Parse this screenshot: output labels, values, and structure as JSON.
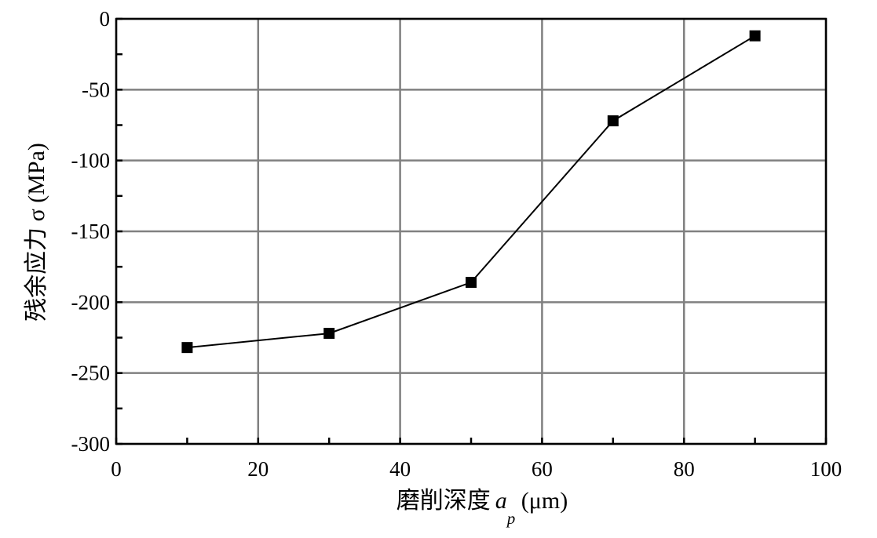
{
  "chart_data": {
    "type": "line",
    "title": "",
    "xlabel": "磨削深度",
    "xlabel_symbol": "a",
    "xlabel_subscript": "p",
    "xlabel_unit": " (μm)",
    "ylabel": "残余应力 σ (MPa)",
    "xlim": [
      0,
      100
    ],
    "ylim": [
      -300,
      0
    ],
    "xticks": [
      0,
      20,
      40,
      60,
      80,
      100
    ],
    "yticks": [
      0,
      -50,
      -100,
      -150,
      -200,
      -250,
      -300
    ],
    "xtick_labels": [
      "0",
      "20",
      "40",
      "60",
      "80",
      "100"
    ],
    "ytick_labels": [
      "0",
      "-50",
      "-100",
      "-150",
      "-200",
      "-250",
      "-300"
    ],
    "grid": true,
    "series": [
      {
        "marker": "square",
        "color": "#000000",
        "x": [
          10,
          30,
          50,
          70,
          90
        ],
        "y": [
          -232,
          -222,
          -186,
          -72,
          -12
        ]
      }
    ]
  }
}
